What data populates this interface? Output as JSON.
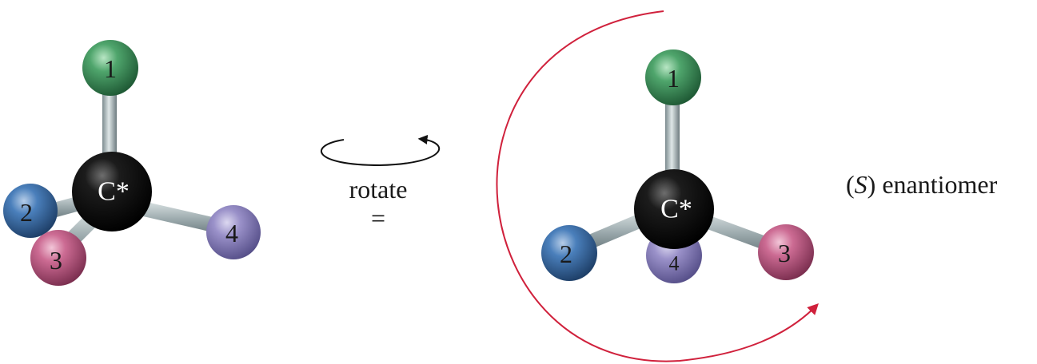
{
  "left_molecule": {
    "center_label": "C*",
    "substituents": [
      {
        "label": "1",
        "color": "#3f8e5a"
      },
      {
        "label": "2",
        "color": "#3d6fa8"
      },
      {
        "label": "3",
        "color": "#c05d85"
      },
      {
        "label": "4",
        "color": "#8a80bd"
      }
    ]
  },
  "rotation": {
    "label": "rotate",
    "equals": "="
  },
  "right_molecule": {
    "center_label": "C*",
    "substituents": [
      {
        "label": "1",
        "color": "#3f8e5a"
      },
      {
        "label": "2",
        "color": "#3d6fa8"
      },
      {
        "label": "3",
        "color": "#c05d85"
      },
      {
        "label": "4",
        "color": "#8a80bd"
      }
    ]
  },
  "caption": {
    "open_paren": "(",
    "configuration": "S",
    "close_paren": ")",
    "word": " enantiomer"
  },
  "colors": {
    "carbon": "#111111",
    "bond": "#a6b3b6",
    "arrow_red": "#d0213c",
    "arrow_black": "#111111"
  }
}
